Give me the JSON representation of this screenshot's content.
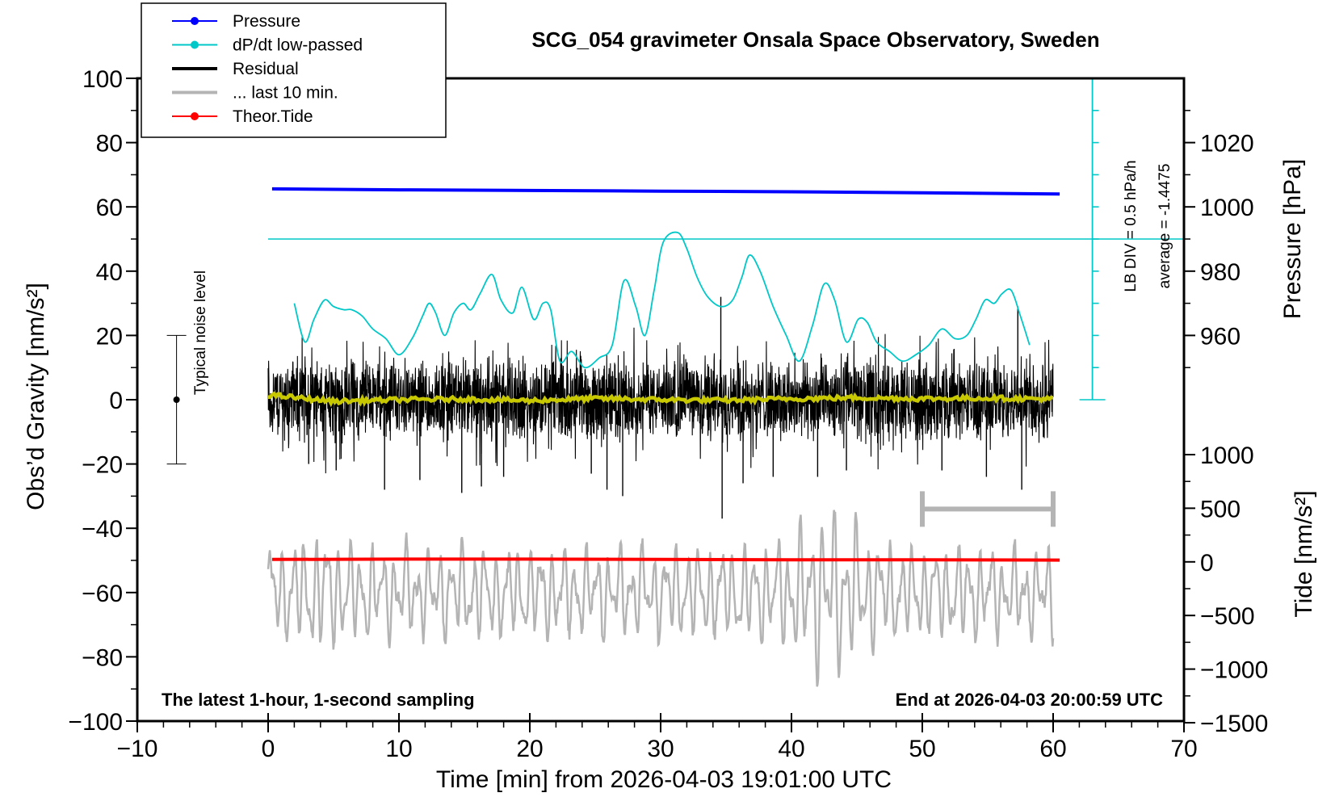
{
  "chart_data": {
    "type": "line",
    "title": "SCG_054 gravimeter Onsala Space Observatory, Sweden",
    "subtitle_left": "The latest 1-hour, 1-second sampling",
    "subtitle_right": "End at 2026-04-03 20:00:59 UTC",
    "xlabel": "Time [min] from 2026-04-03 19:01:00 UTC",
    "ylabel_left": "Obs’d Gravity [nm/s²]",
    "ylabel_pressure": "Pressure [hPa]",
    "ylabel_tide": "Tide [nm/s²]",
    "xlim": [
      -10,
      70
    ],
    "ylim": [
      -100,
      100
    ],
    "x_ticks": [
      "−10",
      "0",
      "10",
      "20",
      "30",
      "40",
      "50",
      "60",
      "70"
    ],
    "x_tick_values": [
      -10,
      0,
      10,
      20,
      30,
      40,
      50,
      60,
      70
    ],
    "y_ticks": [
      "100",
      "80",
      "60",
      "40",
      "20",
      "0",
      "−20",
      "−40",
      "−60",
      "−80",
      "−100"
    ],
    "y_tick_values": [
      100,
      80,
      60,
      40,
      20,
      0,
      -20,
      -40,
      -60,
      -80,
      -100
    ],
    "pressure_ticks": [
      "1020",
      "1000",
      "980",
      "960"
    ],
    "pressure_tick_values": [
      1020,
      1000,
      980,
      960
    ],
    "pressure_range_hpa": [
      940,
      1040
    ],
    "tide_ticks": [
      "1000",
      "500",
      "0",
      "−500",
      "−1000",
      "−1500"
    ],
    "tide_tick_values": [
      1000,
      500,
      0,
      -500,
      -1000,
      -1500
    ],
    "tide_range": [
      -1500,
      1000
    ],
    "legend": [
      {
        "label": "Pressure",
        "color": "#0000ff",
        "marker": true
      },
      {
        "label": "dP/dt low-passed",
        "color": "#00c8c8",
        "marker": true
      },
      {
        "label": "Residual",
        "color": "#000000",
        "marker": false
      },
      {
        "label": "... last 10 min.",
        "color": "#b4b4b4",
        "marker": false
      },
      {
        "label": "Theor.Tide",
        "color": "#ff0000",
        "marker": true
      }
    ],
    "noise_label": "Typical noise level",
    "noise_bar": {
      "x": -7,
      "center": 0,
      "low": -20,
      "high": 20
    },
    "dpdt_scale_label": "LB DIV = 0.5 hPa/h",
    "dpdt_average_label": "average = -1.4475",
    "dpdt_scale_x": 63,
    "dpdt_reference_level": 50,
    "last10_bar": {
      "x_start": 50,
      "x_end": 60,
      "y": -34
    },
    "series": [
      {
        "name": "Pressure",
        "color": "#0000ff",
        "x": [
          0.3,
          10,
          20,
          30,
          40,
          50,
          60.5
        ],
        "values": [
          65.6,
          65.3,
          65.1,
          64.9,
          64.7,
          64.4,
          64.0
        ]
      },
      {
        "name": "dP/dt low-passed",
        "color": "#00c8c8",
        "x": [
          2.0,
          2.8,
          3.5,
          4.3,
          5.0,
          5.8,
          6.4,
          7.2,
          8.0,
          9.0,
          10.0,
          11.0,
          11.8,
          12.3,
          12.8,
          13.5,
          14.2,
          14.9,
          15.5,
          16.2,
          17.1,
          17.8,
          18.7,
          19.4,
          20.3,
          21.0,
          21.6,
          22.3,
          23.2,
          24.2,
          25.3,
          26.3,
          27.2,
          28.1,
          28.8,
          29.5,
          30.2,
          31.3,
          32.0,
          32.8,
          33.6,
          34.6,
          35.5,
          36.2,
          36.8,
          37.6,
          38.6,
          39.6,
          40.6,
          41.6,
          42.5,
          43.3,
          44.2,
          45.1,
          45.8,
          46.5,
          47.5,
          48.5,
          49.5,
          50.5,
          51.5,
          52.5,
          53.4,
          54.1,
          54.8,
          55.5,
          56.1,
          56.8,
          57.5,
          58.2
        ],
        "values": [
          30,
          18,
          25,
          31,
          29,
          28,
          28,
          26,
          22,
          19,
          14,
          19,
          26,
          30,
          27,
          20,
          27,
          30,
          28,
          33,
          39,
          31,
          27,
          35,
          25,
          30,
          28,
          12,
          15,
          10,
          13,
          17,
          37,
          29,
          20,
          34,
          49,
          52,
          47,
          38,
          32,
          29,
          31,
          38,
          45,
          40,
          29,
          20,
          12,
          23,
          36,
          31,
          18,
          25,
          24,
          18,
          15,
          12,
          14,
          17,
          22,
          19,
          20,
          25,
          31,
          30,
          33,
          34,
          26,
          17
        ]
      },
      {
        "name": "Residual",
        "color": "#000000",
        "x_range": [
          0,
          60
        ],
        "amplitude": 10,
        "spikes": [
          [
            3.1,
            -20
          ],
          [
            5.2,
            -22
          ],
          [
            8.9,
            -28
          ],
          [
            11.6,
            -25
          ],
          [
            14.8,
            -29
          ],
          [
            16.3,
            -27
          ],
          [
            18.0,
            -24
          ],
          [
            25.9,
            -28
          ],
          [
            27.1,
            -30
          ],
          [
            34.6,
            32
          ],
          [
            34.7,
            -37
          ],
          [
            36.3,
            -26
          ],
          [
            38.6,
            -24
          ],
          [
            44.2,
            -22
          ],
          [
            57.3,
            29
          ],
          [
            57.6,
            -28
          ],
          [
            51.5,
            -22
          ],
          [
            54.9,
            -24
          ],
          [
            24.7,
            -23
          ],
          [
            42.0,
            -24
          ]
        ]
      },
      {
        "name": "Residual running mean",
        "color": "#c8c800",
        "x": [
          0,
          5,
          10,
          15,
          20,
          25,
          30,
          35,
          40,
          45,
          50,
          55,
          60
        ],
        "values": [
          1.5,
          -0.5,
          0,
          0.2,
          -0.3,
          0.4,
          0,
          -0.2,
          0.3,
          0.6,
          0.3,
          0.5,
          0.2
        ]
      },
      {
        "name": "... last 10 min.",
        "color": "#b4b4b4",
        "x_range": [
          0,
          60
        ],
        "center": -60,
        "amplitude": 12
      },
      {
        "name": "Theor.Tide",
        "color": "#ff0000",
        "x": [
          0.3,
          10,
          20,
          30,
          40,
          50,
          60.5
        ],
        "values": [
          -49.7,
          -49.6,
          -49.6,
          -49.7,
          -49.8,
          -49.8,
          -49.9
        ]
      }
    ]
  }
}
